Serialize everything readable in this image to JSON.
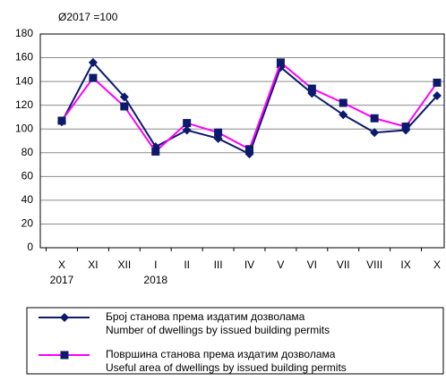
{
  "chart_data": {
    "type": "line",
    "annotation": "Ø2017 =100",
    "categories": [
      "X",
      "XI",
      "XII",
      "I",
      "II",
      "III",
      "IV",
      "V",
      "VI",
      "VII",
      "VIII",
      "IX",
      "X"
    ],
    "category_years": [
      "2017",
      null,
      null,
      "2018",
      null,
      null,
      null,
      null,
      null,
      null,
      null,
      null,
      null
    ],
    "series": [
      {
        "name": [
          "Број станова према издатим дозволама",
          "Number of dwellings by issued building permits"
        ],
        "color": "#0b1a6b",
        "marker_color": "#0b1a6b",
        "marker": "diamond",
        "values": [
          106,
          156,
          127,
          85,
          99,
          92,
          79,
          152,
          130,
          112,
          97,
          99,
          128
        ]
      },
      {
        "name": [
          "Површина станова према издатим дозволама",
          "Useful area of dwellings by issued building permits"
        ],
        "color": "#ff00ff",
        "marker_color": "#0b1a6b",
        "marker": "square",
        "values": [
          107,
          143,
          119,
          81,
          105,
          97,
          83,
          156,
          134,
          122,
          109,
          102,
          139
        ]
      }
    ],
    "ylim": [
      0,
      180
    ],
    "yticks": [
      0,
      20,
      40,
      60,
      80,
      100,
      120,
      140,
      160,
      180
    ],
    "grid": true
  }
}
